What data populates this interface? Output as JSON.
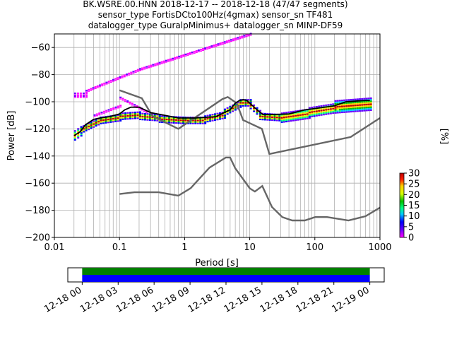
{
  "title_lines": [
    "BK.WSRE.00.HNN   2018-12-17 -- 2018-12-18  (47/47 segments)",
    "sensor_type FortisDCto100Hz(4gmax) sensor_sn TF481",
    "datalogger_type GuralpMinimus+ datalogger_sn MINP-DF59"
  ],
  "chart_data": [
    {
      "type": "heatmap",
      "description_kind": "probabilistic power spectral density",
      "xlabel": "Period [s]",
      "ylabel": "Power [dB]",
      "xscale": "log",
      "xlim": [
        0.01,
        1000
      ],
      "ylim": [
        -200,
        -50
      ],
      "x_ticks": [
        {
          "value": 0.01,
          "label": "0.01"
        },
        {
          "value": 0.1,
          "label": "0.1"
        },
        {
          "value": 1,
          "label": "1"
        },
        {
          "value": 10,
          "label": "10"
        },
        {
          "value": 100,
          "label": "100"
        },
        {
          "value": 1000,
          "label": "1000"
        }
      ],
      "y_ticks": [
        {
          "value": -60,
          "label": "−60"
        },
        {
          "value": -80,
          "label": "−80"
        },
        {
          "value": -100,
          "label": "−100"
        },
        {
          "value": -120,
          "label": "−120"
        },
        {
          "value": -140,
          "label": "−140"
        },
        {
          "value": -160,
          "label": "−160"
        },
        {
          "value": -180,
          "label": "−180"
        },
        {
          "value": -200,
          "label": "−200"
        }
      ],
      "grid": true,
      "colorbar": {
        "label": "[%]",
        "range": [
          0,
          30
        ],
        "ticks": [
          0,
          5,
          10,
          15,
          20,
          25,
          30
        ],
        "tick_labels": [
          "0",
          "5",
          "10",
          "15",
          "20",
          "25",
          "30"
        ]
      },
      "mean_curve": [
        [
          0.02,
          -125
        ],
        [
          0.025,
          -122
        ],
        [
          0.03,
          -117
        ],
        [
          0.04,
          -113
        ],
        [
          0.05,
          -112
        ],
        [
          0.07,
          -111
        ],
        [
          0.1,
          -109
        ],
        [
          0.12,
          -106
        ],
        [
          0.15,
          -104
        ],
        [
          0.2,
          -104
        ],
        [
          0.3,
          -108
        ],
        [
          0.5,
          -110
        ],
        [
          0.8,
          -112
        ],
        [
          1.5,
          -112
        ],
        [
          3,
          -111
        ],
        [
          5,
          -106
        ],
        [
          6,
          -101
        ],
        [
          7,
          -99
        ],
        [
          8,
          -98.5
        ],
        [
          9,
          -99
        ],
        [
          10,
          -101
        ],
        [
          13,
          -106
        ],
        [
          16,
          -109.5
        ],
        [
          20,
          -109.5
        ],
        [
          40,
          -109
        ],
        [
          70,
          -106
        ],
        [
          100,
          -105
        ],
        [
          200,
          -103
        ],
        [
          300,
          -100
        ],
        [
          600,
          -99
        ],
        [
          700,
          -99
        ]
      ],
      "heat_bands": [
        {
          "period": [
            0.02,
            0.025
          ],
          "db_center": [
            -125,
            -122
          ],
          "spread": 3
        },
        {
          "period": [
            0.025,
            0.05
          ],
          "db_center": [
            -121,
            -114
          ],
          "spread": 2
        },
        {
          "period": [
            0.05,
            0.1
          ],
          "db_center": [
            -114,
            -112
          ],
          "spread": 2
        },
        {
          "period": [
            0.1,
            0.2
          ],
          "db_center": [
            -111,
            -110
          ],
          "spread": 2
        },
        {
          "period": [
            0.2,
            0.4
          ],
          "db_center": [
            -111,
            -112
          ],
          "spread": 2
        },
        {
          "period": [
            0.4,
            1
          ],
          "db_center": [
            -113,
            -114
          ],
          "spread": 2
        },
        {
          "period": [
            1,
            2
          ],
          "db_center": [
            -114,
            -114
          ],
          "spread": 2
        },
        {
          "period": [
            2,
            4
          ],
          "db_center": [
            -113,
            -110
          ],
          "spread": 2
        },
        {
          "period": [
            4,
            7
          ],
          "db_center": [
            -108,
            -102
          ],
          "spread": 2
        },
        {
          "period": [
            7,
            10
          ],
          "db_center": [
            -101,
            -101
          ],
          "spread": 2
        },
        {
          "period": [
            10,
            14
          ],
          "db_center": [
            -103,
            -109
          ],
          "spread": 2
        },
        {
          "period": [
            14,
            30
          ],
          "db_center": [
            -111,
            -112
          ],
          "spread": 2
        },
        {
          "period": [
            30,
            80
          ],
          "db_center": [
            -112,
            -109
          ],
          "spread": 3
        },
        {
          "period": [
            80,
            200
          ],
          "db_center": [
            -108,
            -105
          ],
          "spread": 3
        },
        {
          "period": [
            200,
            700
          ],
          "db_center": [
            -104,
            -102
          ],
          "spread": 4
        }
      ],
      "sparse_bands": [
        {
          "period": [
            0.02,
            0.03
          ],
          "db": -94
        },
        {
          "period": [
            0.02,
            0.03
          ],
          "db": -96
        },
        {
          "period": [
            0.03,
            0.2
          ],
          "db_from": -92,
          "db_to": -76
        },
        {
          "period": [
            0.2,
            10
          ],
          "db_from": -76,
          "db_to": -50
        },
        {
          "period": [
            0.04,
            0.1
          ],
          "db_from": -110,
          "db_to": -103
        },
        {
          "period": [
            0.1,
            0.25
          ],
          "db_from": -97,
          "db_to": -107
        }
      ],
      "noise_models": {
        "high": [
          [
            0.1,
            -91.5
          ],
          [
            0.22,
            -97.4
          ],
          [
            0.32,
            -110.5
          ],
          [
            0.8,
            -120
          ],
          [
            3.8,
            -98
          ],
          [
            4.6,
            -96.5
          ],
          [
            6.3,
            -101
          ],
          [
            7.9,
            -113.5
          ],
          [
            15.4,
            -120
          ],
          [
            20,
            -138.5
          ],
          [
            354.8,
            -126
          ],
          [
            1000,
            -112
          ]
        ],
        "low": [
          [
            0.1,
            -168
          ],
          [
            0.17,
            -166.7
          ],
          [
            0.4,
            -166.7
          ],
          [
            0.8,
            -169.2
          ],
          [
            1.24,
            -163.7
          ],
          [
            2.4,
            -148.6
          ],
          [
            4.3,
            -141.1
          ],
          [
            5,
            -141.1
          ],
          [
            6,
            -149
          ],
          [
            10,
            -163.8
          ],
          [
            12,
            -166.2
          ],
          [
            15.6,
            -162.1
          ],
          [
            21.9,
            -177.5
          ],
          [
            31.6,
            -185
          ],
          [
            45,
            -187.5
          ],
          [
            70,
            -187.5
          ],
          [
            101,
            -185
          ],
          [
            154,
            -185
          ],
          [
            328,
            -187.5
          ],
          [
            600,
            -184.4
          ],
          [
            1000,
            -178
          ]
        ]
      }
    },
    {
      "type": "timeline",
      "description_kind": "data availability",
      "x_tick_labels": [
        "12-18 00",
        "12-18 03",
        "12-18 06",
        "12-18 09",
        "12-18 12",
        "12-18 15",
        "12-18 18",
        "12-18 21",
        "12-19 00"
      ],
      "rows": [
        {
          "color": "#008000",
          "start_hour": 0,
          "end_hour": 24
        },
        {
          "color": "#0000ff",
          "start_hour": 0,
          "end_hour": 24
        }
      ],
      "time_range_hours": [
        -1.2,
        25.2
      ]
    }
  ]
}
